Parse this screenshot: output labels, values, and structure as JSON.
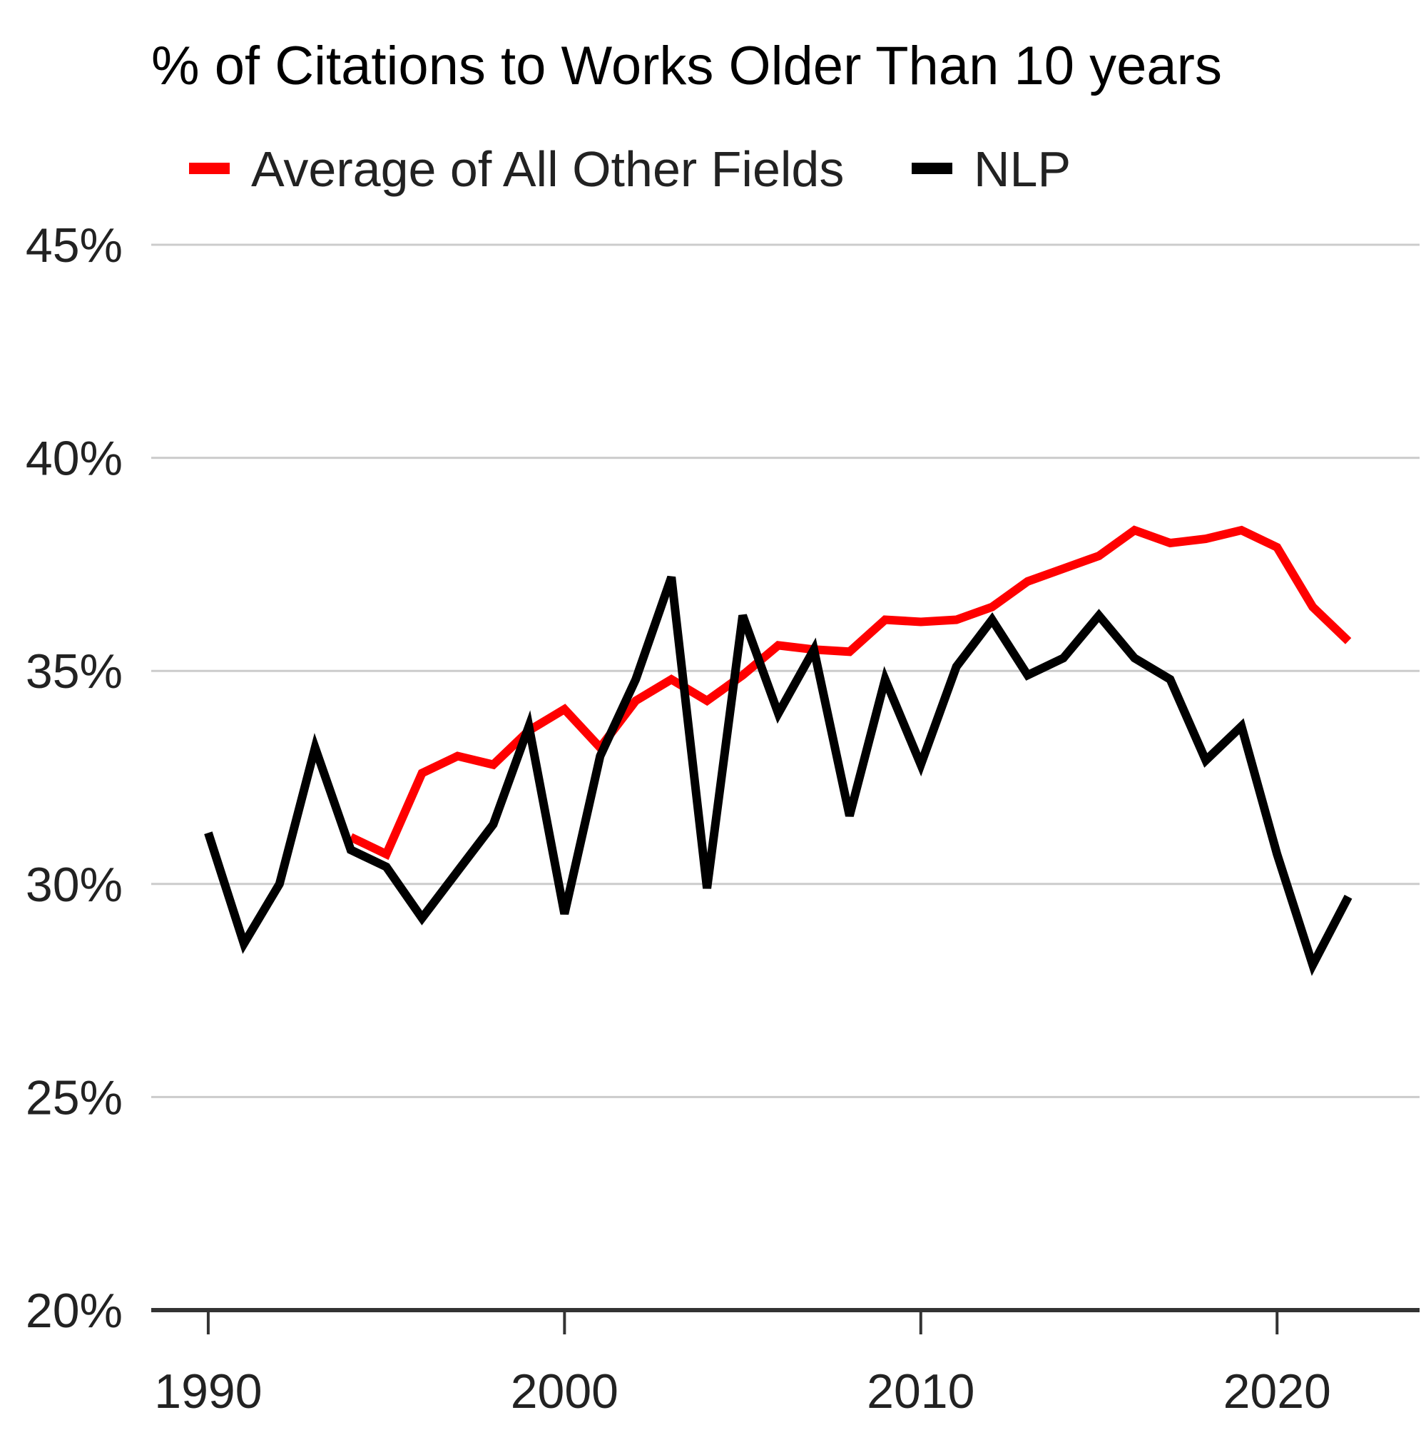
{
  "chart_data": {
    "type": "line",
    "title": "% of Citations to Works Older Than 10 years",
    "xlabel": "",
    "ylabel": "",
    "xlim": [
      1988.4,
      2024
    ],
    "ylim": [
      20,
      45
    ],
    "x_ticks": [
      1990,
      2000,
      2010,
      2020
    ],
    "x_tick_labels": [
      "1990",
      "2000",
      "2010",
      "2020"
    ],
    "y_ticks": [
      20,
      25,
      30,
      35,
      40,
      45
    ],
    "y_tick_labels": [
      "20%",
      "25%",
      "30%",
      "35%",
      "40%",
      "45%"
    ],
    "grid": "horizontal",
    "legend_position": "top",
    "x": [
      1990,
      1991,
      1992,
      1993,
      1994,
      1995,
      1996,
      1997,
      1998,
      1999,
      2000,
      2001,
      2002,
      2003,
      2004,
      2005,
      2006,
      2007,
      2008,
      2009,
      2010,
      2011,
      2012,
      2013,
      2014,
      2015,
      2016,
      2017,
      2018,
      2019,
      2020,
      2021,
      2022
    ],
    "series": [
      {
        "name": "Average of All Other Fields",
        "color": "#ff0000",
        "values": [
          null,
          null,
          null,
          null,
          31.1,
          30.7,
          32.6,
          33.0,
          32.8,
          33.6,
          34.1,
          33.2,
          34.3,
          34.8,
          34.3,
          34.9,
          35.6,
          35.5,
          35.45,
          36.2,
          36.15,
          36.2,
          36.5,
          37.1,
          37.4,
          37.7,
          38.3,
          38.0,
          38.1,
          38.3,
          37.9,
          36.5,
          35.7
        ]
      },
      {
        "name": "NLP",
        "color": "#000000",
        "values": [
          31.2,
          28.6,
          30.0,
          33.2,
          30.8,
          30.4,
          29.2,
          30.3,
          31.4,
          33.7,
          29.3,
          33.0,
          34.8,
          37.2,
          29.9,
          36.3,
          34.0,
          35.5,
          31.6,
          34.8,
          32.8,
          35.1,
          36.2,
          34.9,
          35.3,
          36.3,
          35.3,
          34.8,
          32.9,
          33.7,
          30.7,
          28.1,
          29.7
        ]
      }
    ]
  }
}
